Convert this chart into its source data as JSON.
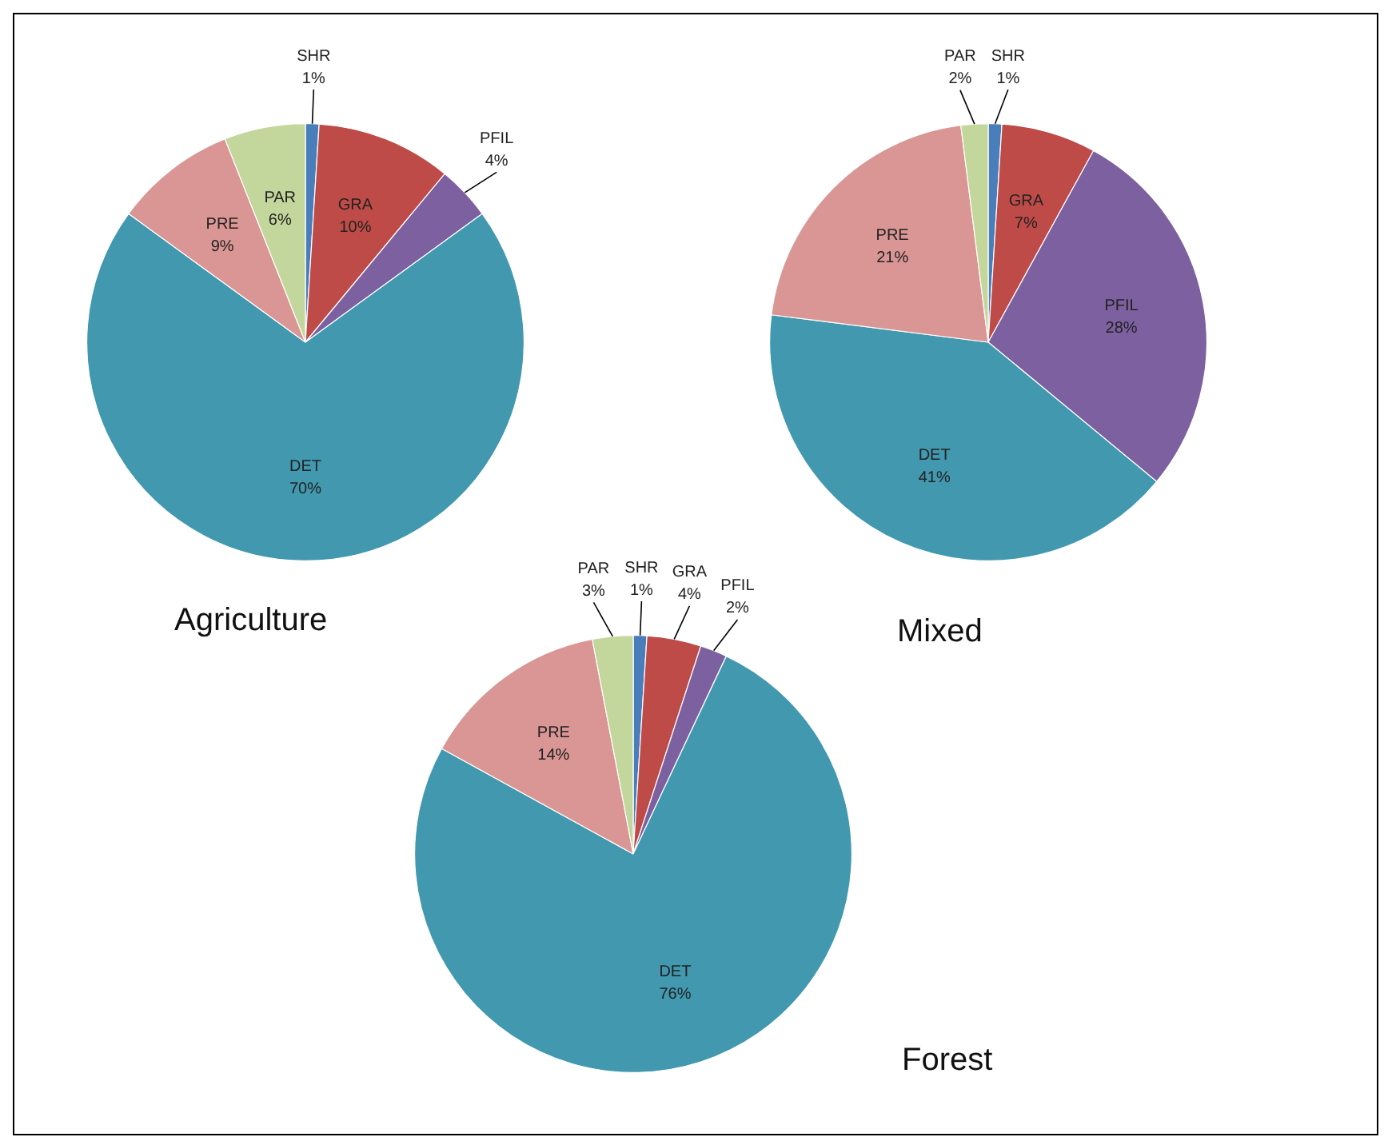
{
  "chart_data": [
    {
      "type": "pie",
      "title": "Agriculture",
      "categories": [
        "SHR",
        "GRA",
        "PFIL",
        "DET",
        "PRE",
        "PAR"
      ],
      "values": [
        1,
        10,
        4,
        70,
        9,
        6
      ],
      "value_labels": [
        "1%",
        "10%",
        "4%",
        "70%",
        "9%",
        "6%"
      ],
      "colors": [
        "#4a7ebb",
        "#be4b48",
        "#7d60a0",
        "#4198af",
        "#d99694",
        "#c3d69b"
      ],
      "legend": false
    },
    {
      "type": "pie",
      "title": "Mixed",
      "categories": [
        "SHR",
        "GRA",
        "PFIL",
        "DET",
        "PRE",
        "PAR"
      ],
      "values": [
        1,
        7,
        28,
        41,
        21,
        2
      ],
      "value_labels": [
        "1%",
        "7%",
        "28%",
        "41%",
        "21%",
        "2%"
      ],
      "colors": [
        "#4a7ebb",
        "#be4b48",
        "#7d60a0",
        "#4198af",
        "#d99694",
        "#c3d69b"
      ],
      "legend": false
    },
    {
      "type": "pie",
      "title": "Forest",
      "categories": [
        "SHR",
        "GRA",
        "PFIL",
        "DET",
        "PRE",
        "PAR"
      ],
      "values": [
        1,
        4,
        2,
        76,
        14,
        3
      ],
      "value_labels": [
        "1%",
        "4%",
        "2%",
        "76%",
        "14%",
        "3%"
      ],
      "colors": [
        "#4a7ebb",
        "#be4b48",
        "#7d60a0",
        "#4198af",
        "#d99694",
        "#c3d69b"
      ],
      "legend": false
    }
  ]
}
